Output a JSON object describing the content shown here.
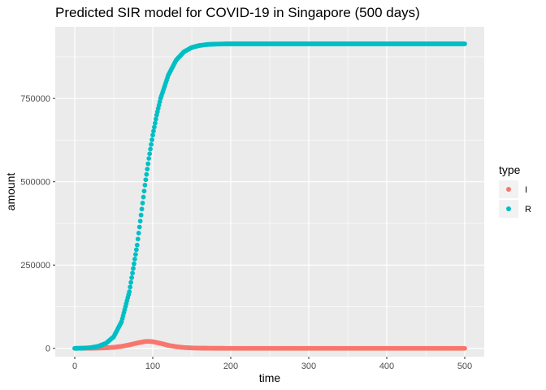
{
  "chart_data": {
    "type": "scatter",
    "title": "Predicted SIR model for COVID-19 in Singapore (500 days)",
    "xlabel": "time",
    "ylabel": "amount",
    "xlim": [
      -25,
      525
    ],
    "ylim": [
      -25000,
      965000
    ],
    "x_ticks": [
      0,
      100,
      200,
      300,
      400,
      500
    ],
    "x_tick_labels": [
      "0",
      "100",
      "200",
      "300",
      "400",
      "500"
    ],
    "y_ticks": [
      0,
      250000,
      500000,
      750000
    ],
    "y_tick_labels": [
      "0",
      "250000",
      "500000",
      "750000"
    ],
    "grid": true,
    "legend": {
      "title": "type",
      "position": "right",
      "entries": [
        {
          "label": "I",
          "color": "#F8766D"
        },
        {
          "label": "R",
          "color": "#00BFC4"
        }
      ]
    },
    "series": [
      {
        "name": "I",
        "color": "#F8766D",
        "x": [
          0,
          20,
          40,
          50,
          60,
          70,
          80,
          90,
          95,
          100,
          110,
          120,
          130,
          140,
          150,
          160,
          180,
          200,
          250,
          300,
          400,
          500
        ],
        "values": [
          0,
          300,
          1500,
          3000,
          6000,
          10500,
          16000,
          20500,
          21000,
          20000,
          15000,
          9000,
          5000,
          2500,
          1200,
          600,
          150,
          50,
          0,
          0,
          0,
          0
        ]
      },
      {
        "name": "R",
        "color": "#00BFC4",
        "x": [
          0,
          10,
          20,
          30,
          40,
          50,
          60,
          70,
          80,
          85,
          90,
          95,
          100,
          105,
          110,
          120,
          130,
          140,
          150,
          160,
          170,
          180,
          200,
          250,
          300,
          400,
          500
        ],
        "values": [
          0,
          500,
          2000,
          6000,
          15000,
          35000,
          80000,
          170000,
          310000,
          400000,
          490000,
          570000,
          640000,
          700000,
          750000,
          820000,
          865000,
          890000,
          903000,
          909000,
          912000,
          913000,
          914000,
          914000,
          914000,
          914000,
          914000
        ]
      }
    ]
  }
}
